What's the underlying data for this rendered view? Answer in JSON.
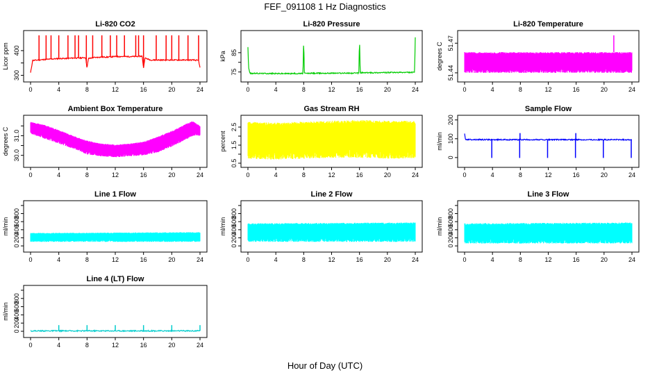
{
  "figure": {
    "title": "FEF_091108  1 Hz Diagnostics",
    "xlabel": "Hour of Day (UTC)"
  },
  "chart_data": [
    {
      "type": "line",
      "title": "Li-820 CO2",
      "ylabel": "Licor ppm",
      "color": "#ff0000",
      "xlim": [
        0,
        24
      ],
      "ylim": [
        290,
        470
      ],
      "xticks": [
        0,
        4,
        8,
        12,
        16,
        20,
        24
      ],
      "yticks": [
        300,
        350,
        400
      ],
      "ytick_labels": [
        "300",
        "",
        "400"
      ],
      "x": [
        0,
        0.3,
        1,
        2,
        3,
        4,
        5,
        6,
        7,
        7.8,
        8,
        8.2,
        9,
        10,
        11,
        12,
        13,
        14,
        15,
        15.8,
        16,
        16.2,
        17,
        18,
        19,
        20,
        21,
        22,
        23,
        23.8,
        24
      ],
      "y": [
        310,
        360,
        362,
        364,
        366,
        368,
        368,
        370,
        370,
        372,
        330,
        368,
        372,
        374,
        374,
        376,
        376,
        376,
        376,
        378,
        330,
        370,
        362,
        362,
        362,
        362,
        362,
        362,
        362,
        360,
        330
      ],
      "spikes_x": [
        1.2,
        2.2,
        2.9,
        4.0,
        5.3,
        6.3,
        6.8,
        7.9,
        8.8,
        10.1,
        11.3,
        12.2,
        13.3,
        14.9,
        15.3,
        16.0,
        17.8,
        19.2,
        20.0,
        21.0,
        22.3,
        23.8
      ],
      "spike_y": 462
    },
    {
      "type": "line",
      "title": "Li-820 Pressure",
      "ylabel": "kPa",
      "color": "#00cc00",
      "xlim": [
        0,
        24
      ],
      "ylim": [
        72,
        95
      ],
      "xticks": [
        0,
        4,
        8,
        12,
        16,
        20,
        24
      ],
      "yticks": [
        75,
        80,
        85
      ],
      "ytick_labels": [
        "75",
        "",
        "85"
      ],
      "x": [
        0,
        0.1,
        0.3,
        4,
        7.9,
        8,
        8.1,
        12,
        15.9,
        16,
        16.1,
        20,
        23.9,
        24
      ],
      "y": [
        88,
        77,
        74.3,
        74.2,
        74.2,
        92,
        74.3,
        74.4,
        74.4,
        93,
        74.6,
        74.7,
        74.8,
        93
      ]
    },
    {
      "type": "area",
      "title": "Li-820 Temperature",
      "ylabel": "degrees C",
      "color": "#ff00ff",
      "xlim": [
        0,
        24
      ],
      "ylim": [
        51.435,
        51.48
      ],
      "xticks": [
        0,
        4,
        8,
        12,
        16,
        20,
        24
      ],
      "yticks": [
        51.44,
        51.47
      ],
      "ytick_labels": [
        "51.44",
        "51.47"
      ],
      "x": [
        0,
        24
      ],
      "y_low": 51.44,
      "y_high": 51.461,
      "spike_x": 21.4,
      "spike_y": 51.478
    },
    {
      "type": "area",
      "title": "Ambient Box Temperature",
      "ylabel": "degrees C",
      "color": "#ff00ff",
      "xlim": [
        0,
        24
      ],
      "ylim": [
        29.6,
        31.9
      ],
      "xticks": [
        0,
        4,
        8,
        12,
        16,
        20,
        24
      ],
      "yticks": [
        30.0,
        30.5,
        31.0,
        31.5
      ],
      "ytick_labels": [
        "30.0",
        "",
        "31.0",
        ""
      ],
      "x": [
        0,
        2,
        4,
        6,
        8,
        10,
        12,
        14,
        16,
        18,
        20,
        22,
        23,
        24
      ],
      "y_low": [
        31.1,
        30.85,
        30.6,
        30.35,
        30.05,
        29.95,
        29.9,
        29.95,
        30.0,
        30.15,
        30.45,
        30.8,
        31.0,
        31.0
      ],
      "y_high": [
        31.7,
        31.55,
        31.3,
        31.0,
        30.75,
        30.6,
        30.55,
        30.6,
        30.7,
        30.95,
        31.25,
        31.6,
        31.75,
        31.5
      ]
    },
    {
      "type": "area",
      "title": "Gas Stream RH",
      "ylabel": "percent",
      "color": "#ffff00",
      "xlim": [
        0,
        24
      ],
      "ylim": [
        0.5,
        3.0
      ],
      "xticks": [
        0,
        4,
        8,
        12,
        16,
        20,
        24
      ],
      "yticks": [
        0.5,
        1.0,
        1.5,
        2.0,
        2.5
      ],
      "ytick_labels": [
        "0.5",
        "",
        "1.5",
        "",
        "2.5"
      ],
      "x": [
        0,
        4,
        8,
        12,
        16,
        20,
        24
      ],
      "y_low": [
        0.75,
        0.7,
        0.75,
        0.8,
        0.8,
        0.75,
        0.75
      ],
      "y_high": [
        2.8,
        2.75,
        2.8,
        2.85,
        2.9,
        2.85,
        2.85
      ]
    },
    {
      "type": "line",
      "title": "Sample Flow",
      "ylabel": "ml/min",
      "color": "#0000ff",
      "xlim": [
        0,
        24
      ],
      "ylim": [
        -30,
        210
      ],
      "xticks": [
        0,
        4,
        8,
        12,
        16,
        20,
        24
      ],
      "yticks": [
        0,
        100,
        200
      ],
      "ytick_labels": [
        "0",
        "100",
        "200"
      ],
      "x": [
        0,
        0.1,
        4,
        8,
        12,
        16,
        20,
        24
      ],
      "y": [
        130,
        96,
        95,
        95,
        95,
        95,
        95,
        95
      ],
      "dips_x": [
        3.9,
        7.9,
        11.9,
        15.9,
        19.9,
        23.9
      ],
      "dip_y": -2,
      "spikes_x": [
        7.95,
        15.95
      ],
      "spike_y": 130
    },
    {
      "type": "area",
      "title": "Line 1 Flow",
      "ylabel": "ml/min",
      "color": "#00ffff",
      "xlim": [
        0,
        24
      ],
      "ylim": [
        -50,
        1050
      ],
      "xticks": [
        0,
        4,
        8,
        12,
        16,
        20,
        24
      ],
      "yticks": [
        0,
        200,
        400,
        600,
        800,
        1000
      ],
      "ytick_labels": [
        "0",
        "200",
        "400",
        "600",
        "800",
        ""
      ],
      "x": [
        0,
        24
      ],
      "y_low": [
        100,
        100
      ],
      "y_high": [
        320,
        340
      ]
    },
    {
      "type": "area",
      "title": "Line 2 Flow",
      "ylabel": "ml/min",
      "color": "#00ffff",
      "xlim": [
        0,
        24
      ],
      "ylim": [
        -50,
        1050
      ],
      "xticks": [
        0,
        4,
        8,
        12,
        16,
        20,
        24
      ],
      "yticks": [
        0,
        200,
        400,
        600,
        800,
        1000
      ],
      "ytick_labels": [
        "0",
        "200",
        "400",
        "600",
        "800",
        ""
      ],
      "x": [
        0,
        24
      ],
      "y_low": [
        100,
        100
      ],
      "y_high": [
        560,
        580
      ]
    },
    {
      "type": "area",
      "title": "Line 3 Flow",
      "ylabel": "ml/min",
      "color": "#00ffff",
      "xlim": [
        0,
        24
      ],
      "ylim": [
        -50,
        1050
      ],
      "xticks": [
        0,
        4,
        8,
        12,
        16,
        20,
        24
      ],
      "yticks": [
        0,
        200,
        400,
        600,
        800,
        1000
      ],
      "ytick_labels": [
        "0",
        "200",
        "400",
        "600",
        "800",
        ""
      ],
      "x": [
        0,
        24
      ],
      "y_low": [
        60,
        60
      ],
      "y_high": [
        560,
        580
      ]
    },
    {
      "type": "line",
      "title": "Line 4 (LT) Flow",
      "ylabel": "ml/min",
      "color": "#00cccc",
      "xlim": [
        0,
        24
      ],
      "ylim": [
        -50,
        1050
      ],
      "xticks": [
        0,
        4,
        8,
        12,
        16,
        20,
        24
      ],
      "yticks": [
        0,
        200,
        400,
        600,
        800,
        1000
      ],
      "ytick_labels": [
        "0",
        "200",
        "400",
        "600",
        "800",
        ""
      ],
      "x": [
        0,
        24
      ],
      "y": [
        10,
        10
      ],
      "spikes_x": [
        4,
        8,
        12,
        16,
        20,
        24
      ],
      "spike_y": 150
    }
  ]
}
